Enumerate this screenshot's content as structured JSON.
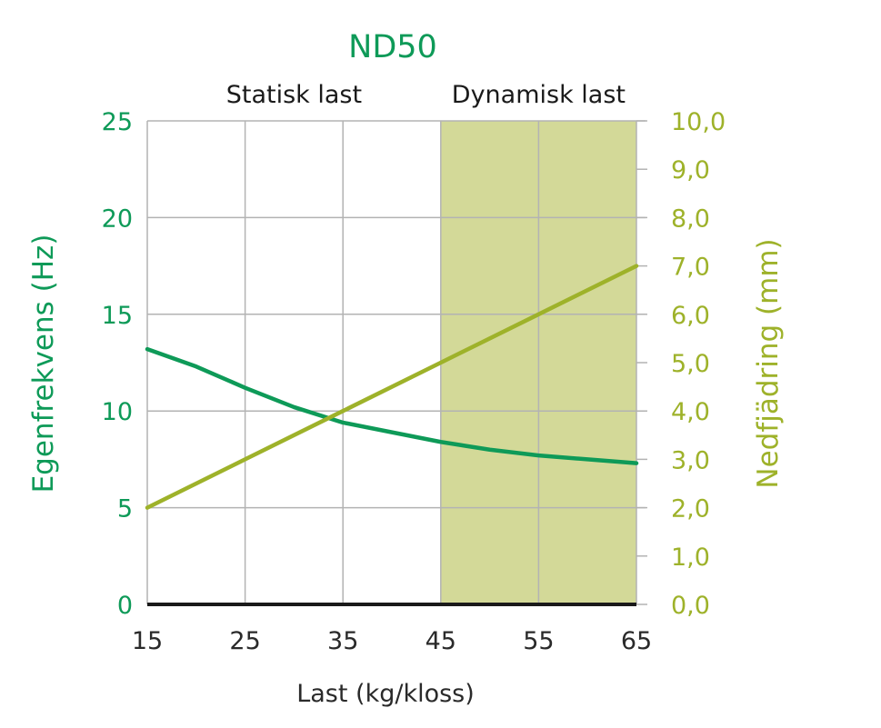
{
  "colors": {
    "green": "#0e9a58",
    "olive": "#9eb22a",
    "shade": "#d3d998",
    "grid": "#b3b3b3",
    "axis": "#1a1a1a"
  },
  "chart_data": {
    "type": "line",
    "title": "ND50",
    "xlabel": "Last (kg/kloss)",
    "ylabel_left": "Egenfrekvens (Hz)",
    "ylabel_right": "Nedfjädring (mm)",
    "xlim": [
      15,
      65
    ],
    "ylim_left": [
      0,
      25
    ],
    "ylim_right": [
      0,
      10
    ],
    "x_ticks": [
      "15",
      "25",
      "35",
      "45",
      "55",
      "65"
    ],
    "y_left_ticks": [
      "0",
      "5",
      "10",
      "15",
      "20",
      "25"
    ],
    "y_right_ticks": [
      "0,0",
      "1,0",
      "2,0",
      "3,0",
      "4,0",
      "5,0",
      "6,0",
      "7,0",
      "8,0",
      "9,0",
      "10,0"
    ],
    "grid": true,
    "regions": [
      {
        "label": "Statisk last",
        "x_from": 15,
        "x_to": 45,
        "shaded": false
      },
      {
        "label": "Dynamisk last",
        "x_from": 45,
        "x_to": 65,
        "shaded": true
      }
    ],
    "series": [
      {
        "axis": "left",
        "color": "#0e9a58",
        "x": [
          15,
          20,
          25,
          30,
          35,
          40,
          45,
          50,
          55,
          60,
          65
        ],
        "values": [
          13.2,
          12.3,
          11.2,
          10.2,
          9.4,
          8.9,
          8.4,
          8.0,
          7.7,
          7.5,
          7.3
        ]
      },
      {
        "axis": "right",
        "color": "#9eb22a",
        "x": [
          15,
          25,
          35,
          45,
          55,
          65
        ],
        "values": [
          2.0,
          3.0,
          4.0,
          5.0,
          6.0,
          7.0
        ]
      }
    ]
  }
}
